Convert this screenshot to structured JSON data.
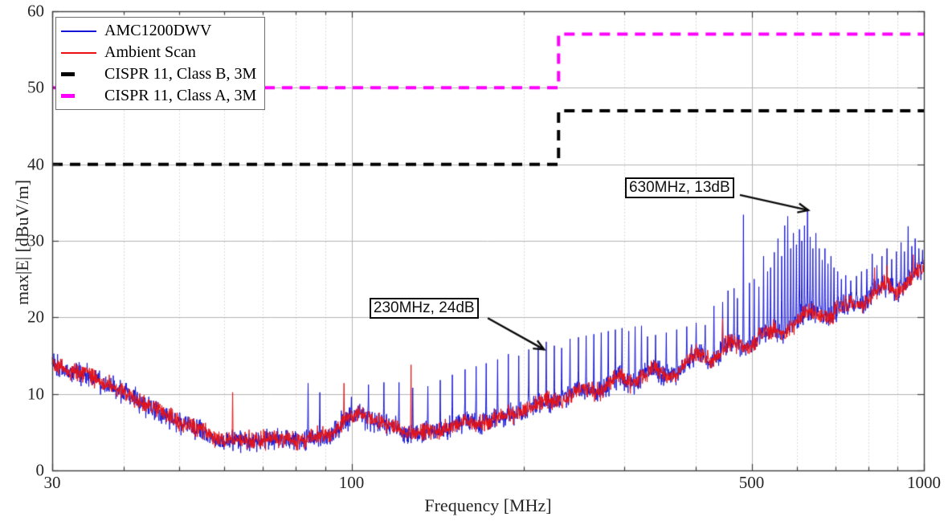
{
  "chart_data": {
    "type": "line",
    "title": "",
    "xlabel": "Frequency [MHz]",
    "ylabel": "max|E| [dBuV/m]",
    "xscale": "log",
    "xlim": [
      30,
      1000
    ],
    "ylim": [
      0,
      60
    ],
    "grid": "on",
    "legend_position": "top-left",
    "x_ticks": [
      {
        "f": 30,
        "label": "30"
      },
      {
        "f": 100,
        "label": "100"
      },
      {
        "f": 500,
        "label": "500"
      },
      {
        "f": 1000,
        "label": "1000"
      }
    ],
    "x_minor_ticks": [
      40,
      50,
      60,
      70,
      80,
      90,
      200,
      300,
      400,
      600,
      700,
      800,
      900
    ],
    "x_major_grid": [
      100,
      500
    ],
    "y_ticks": [
      {
        "v": 0,
        "label": "0"
      },
      {
        "v": 10,
        "label": "10"
      },
      {
        "v": 20,
        "label": "20"
      },
      {
        "v": 30,
        "label": "30"
      },
      {
        "v": 40,
        "label": "40"
      },
      {
        "v": 50,
        "label": "50"
      },
      {
        "v": 60,
        "label": "60"
      }
    ],
    "y_grid": [
      10,
      20,
      30,
      40,
      50
    ],
    "colors": {
      "amc": "#1414d6",
      "ambient": "#ea1010",
      "class_b": "#000000",
      "class_a": "#ff00ff",
      "grid_minor": "#cfcfcf",
      "grid_major": "#b3b3b3",
      "axis": "#3c3c3c",
      "tick_text": "#262626"
    },
    "series": [
      {
        "name": "AMC1200DWV",
        "color": "#1414d6",
        "style": "solid-thin",
        "noise_db": 0.6,
        "baseline_db": [
          [
            30,
            14.3
          ],
          [
            33,
            13.0
          ],
          [
            36,
            11.7
          ],
          [
            40,
            9.9
          ],
          [
            44,
            8.9
          ],
          [
            48,
            7.0
          ],
          [
            52,
            5.7
          ],
          [
            56,
            4.7
          ],
          [
            60,
            4.3
          ],
          [
            64,
            3.9
          ],
          [
            68,
            4.4
          ],
          [
            72,
            3.9
          ],
          [
            76,
            3.7
          ],
          [
            80,
            3.9
          ],
          [
            84,
            4.2
          ],
          [
            88,
            4.6
          ],
          [
            92,
            5.3
          ],
          [
            96,
            6.2
          ],
          [
            100,
            6.8
          ],
          [
            104,
            7.1
          ],
          [
            108,
            6.6
          ],
          [
            112,
            6.1
          ],
          [
            116,
            5.7
          ],
          [
            120,
            5.5
          ],
          [
            128,
            5.2
          ],
          [
            136,
            5.1
          ],
          [
            144,
            5.3
          ],
          [
            152,
            5.6
          ],
          [
            160,
            6.0
          ],
          [
            170,
            6.5
          ],
          [
            180,
            7.0
          ],
          [
            190,
            7.4
          ],
          [
            200,
            7.9
          ],
          [
            212,
            8.4
          ],
          [
            224,
            8.9
          ],
          [
            236,
            9.5
          ],
          [
            248,
            10.1
          ],
          [
            260,
            10.7
          ],
          [
            275,
            11.1
          ],
          [
            290,
            11.6
          ],
          [
            305,
            11.4
          ],
          [
            320,
            12.3
          ],
          [
            335,
            12.8
          ],
          [
            350,
            12.4
          ],
          [
            365,
            13.3
          ],
          [
            380,
            13.9
          ],
          [
            395,
            14.6
          ],
          [
            410,
            15.3
          ],
          [
            425,
            14.7
          ],
          [
            440,
            15.1
          ],
          [
            455,
            15.8
          ],
          [
            470,
            16.3
          ],
          [
            485,
            16.6
          ],
          [
            500,
            17.1
          ],
          [
            520,
            17.6
          ],
          [
            540,
            17.9
          ],
          [
            560,
            18.4
          ],
          [
            580,
            18.9
          ],
          [
            600,
            19.4
          ],
          [
            620,
            19.9
          ],
          [
            640,
            20.3
          ],
          [
            660,
            20.6
          ],
          [
            680,
            20.4
          ],
          [
            700,
            20.9
          ],
          [
            725,
            21.4
          ],
          [
            750,
            21.9
          ],
          [
            775,
            22.3
          ],
          [
            800,
            22.8
          ],
          [
            830,
            23.2
          ],
          [
            860,
            23.7
          ],
          [
            890,
            23.5
          ],
          [
            920,
            24.3
          ],
          [
            950,
            24.9
          ],
          [
            975,
            25.5
          ],
          [
            1000,
            26.3
          ]
        ],
        "spikes_db": [
          [
            84,
            11.4
          ],
          [
            88,
            10.2
          ],
          [
            100,
            9.6
          ],
          [
            107,
            11.2
          ],
          [
            114,
            11.5
          ],
          [
            121,
            11.5
          ],
          [
            128,
            10.8
          ],
          [
            136,
            11.0
          ],
          [
            143,
            11.8
          ],
          [
            150,
            12.5
          ],
          [
            158,
            13.2
          ],
          [
            165,
            13.6
          ],
          [
            172,
            14.0
          ],
          [
            180,
            14.5
          ],
          [
            188,
            15.2
          ],
          [
            196,
            15.0
          ],
          [
            204,
            15.8
          ],
          [
            212,
            16.2
          ],
          [
            219,
            16.8
          ],
          [
            226,
            16.3
          ],
          [
            233,
            16.0
          ],
          [
            241,
            17.2
          ],
          [
            249,
            17.4
          ],
          [
            257,
            17.6
          ],
          [
            265,
            17.8
          ],
          [
            273,
            18.0
          ],
          [
            281,
            18.2
          ],
          [
            289,
            18.4
          ],
          [
            297,
            18.6
          ],
          [
            305,
            18.2
          ],
          [
            313,
            18.8
          ],
          [
            321,
            18.9
          ],
          [
            329,
            17.5
          ],
          [
            340,
            17.7
          ],
          [
            355,
            18.0
          ],
          [
            370,
            18.4
          ],
          [
            385,
            18.8
          ],
          [
            400,
            19.3
          ],
          [
            415,
            19.0
          ],
          [
            430,
            21.5
          ],
          [
            445,
            22.0
          ],
          [
            455,
            23.5
          ],
          [
            466,
            23.8
          ],
          [
            472,
            22.5
          ],
          [
            484,
            33.4
          ],
          [
            496,
            24.5
          ],
          [
            505,
            25.0
          ],
          [
            515,
            24.0
          ],
          [
            525,
            28.0
          ],
          [
            533,
            26.0
          ],
          [
            540,
            26.5
          ],
          [
            548,
            28.5
          ],
          [
            556,
            30.3
          ],
          [
            564,
            28.0
          ],
          [
            571,
            32.0
          ],
          [
            578,
            33.2
          ],
          [
            585,
            29.0
          ],
          [
            592,
            31.0
          ],
          [
            599,
            29.5
          ],
          [
            606,
            31.5
          ],
          [
            612,
            30.0
          ],
          [
            619,
            32.0
          ],
          [
            626,
            34.2
          ],
          [
            633,
            30.5
          ],
          [
            640,
            29.0
          ],
          [
            648,
            31.0
          ],
          [
            656,
            29.0
          ],
          [
            664,
            27.5
          ],
          [
            672,
            29.0
          ],
          [
            680,
            27.0
          ],
          [
            688,
            28.0
          ],
          [
            697,
            26.5
          ],
          [
            707,
            26.0
          ],
          [
            718,
            25.0
          ],
          [
            730,
            25.5
          ],
          [
            745,
            24.8
          ],
          [
            762,
            25.4
          ],
          [
            778,
            26.0
          ],
          [
            795,
            26.3
          ],
          [
            812,
            28.3
          ],
          [
            828,
            26.8
          ],
          [
            845,
            28.0
          ],
          [
            862,
            29.0
          ],
          [
            878,
            27.6
          ],
          [
            895,
            28.6
          ],
          [
            912,
            29.8
          ],
          [
            925,
            28.6
          ],
          [
            938,
            31.9
          ],
          [
            952,
            29.3
          ],
          [
            966,
            30.3
          ],
          [
            980,
            29.0
          ],
          [
            994,
            28.8
          ]
        ]
      },
      {
        "name": "Ambient Scan",
        "color": "#ea1010",
        "style": "solid-thin",
        "noise_db": 0.55,
        "baseline_db": [
          [
            30,
            14.3
          ],
          [
            33,
            13.0
          ],
          [
            36,
            11.7
          ],
          [
            40,
            9.9
          ],
          [
            44,
            8.9
          ],
          [
            48,
            7.0
          ],
          [
            52,
            5.7
          ],
          [
            56,
            4.7
          ],
          [
            60,
            4.3
          ],
          [
            64,
            3.9
          ],
          [
            68,
            4.4
          ],
          [
            72,
            3.9
          ],
          [
            76,
            3.7
          ],
          [
            80,
            3.9
          ],
          [
            84,
            4.2
          ],
          [
            88,
            4.6
          ],
          [
            92,
            5.3
          ],
          [
            96,
            6.2
          ],
          [
            100,
            6.8
          ],
          [
            104,
            7.1
          ],
          [
            108,
            6.6
          ],
          [
            112,
            6.1
          ],
          [
            116,
            5.7
          ],
          [
            120,
            5.5
          ],
          [
            128,
            5.2
          ],
          [
            136,
            5.1
          ],
          [
            144,
            5.3
          ],
          [
            152,
            5.6
          ],
          [
            160,
            6.0
          ],
          [
            170,
            6.5
          ],
          [
            180,
            7.0
          ],
          [
            190,
            7.4
          ],
          [
            200,
            7.9
          ],
          [
            212,
            8.4
          ],
          [
            224,
            8.9
          ],
          [
            236,
            9.5
          ],
          [
            248,
            10.1
          ],
          [
            260,
            10.7
          ],
          [
            275,
            11.1
          ],
          [
            290,
            11.6
          ],
          [
            305,
            11.4
          ],
          [
            320,
            12.3
          ],
          [
            335,
            12.8
          ],
          [
            350,
            12.4
          ],
          [
            365,
            13.3
          ],
          [
            380,
            13.9
          ],
          [
            395,
            14.6
          ],
          [
            410,
            15.3
          ],
          [
            425,
            14.7
          ],
          [
            440,
            15.1
          ],
          [
            455,
            15.8
          ],
          [
            470,
            16.3
          ],
          [
            485,
            16.6
          ],
          [
            500,
            17.1
          ],
          [
            520,
            17.6
          ],
          [
            540,
            17.9
          ],
          [
            560,
            18.4
          ],
          [
            580,
            18.9
          ],
          [
            600,
            19.4
          ],
          [
            620,
            19.9
          ],
          [
            640,
            20.3
          ],
          [
            660,
            20.6
          ],
          [
            680,
            20.4
          ],
          [
            700,
            20.9
          ],
          [
            725,
            21.4
          ],
          [
            750,
            21.9
          ],
          [
            775,
            22.3
          ],
          [
            800,
            22.8
          ],
          [
            830,
            23.2
          ],
          [
            860,
            23.7
          ],
          [
            890,
            23.5
          ],
          [
            920,
            24.3
          ],
          [
            950,
            24.9
          ],
          [
            975,
            25.5
          ],
          [
            1000,
            26.3
          ]
        ],
        "spikes_db": [
          [
            62,
            10.2
          ],
          [
            97,
            11.4
          ],
          [
            127,
            13.8
          ],
          [
            445,
            19.8
          ],
          [
            820,
            26.5
          ],
          [
            862,
            26.8
          ],
          [
            958,
            28.2
          ]
        ]
      }
    ],
    "limits": [
      {
        "name": "CISPR 11, Class B, 3M",
        "color": "#000000",
        "style": "dashed-thick",
        "points": [
          [
            30,
            40
          ],
          [
            230,
            40
          ],
          [
            230,
            47
          ],
          [
            1000,
            47
          ]
        ]
      },
      {
        "name": "CISPR 11, Class A, 3M",
        "color": "#ff00ff",
        "style": "dashed-thick",
        "points": [
          [
            30,
            50
          ],
          [
            230,
            50
          ],
          [
            230,
            57
          ],
          [
            1000,
            57
          ]
        ]
      }
    ],
    "annotations": [
      {
        "text": "230MHz, 24dB",
        "box_f": 107.5,
        "box_v": 22.6,
        "start_f": 173,
        "start_v": 19.9,
        "tip_f": 217,
        "tip_v": 15.8
      },
      {
        "text": "630MHz, 13dB",
        "box_f": 300.5,
        "box_v": 38.3,
        "start_f": 477,
        "start_v": 36.0,
        "tip_f": 628,
        "tip_v": 34.0
      }
    ]
  }
}
